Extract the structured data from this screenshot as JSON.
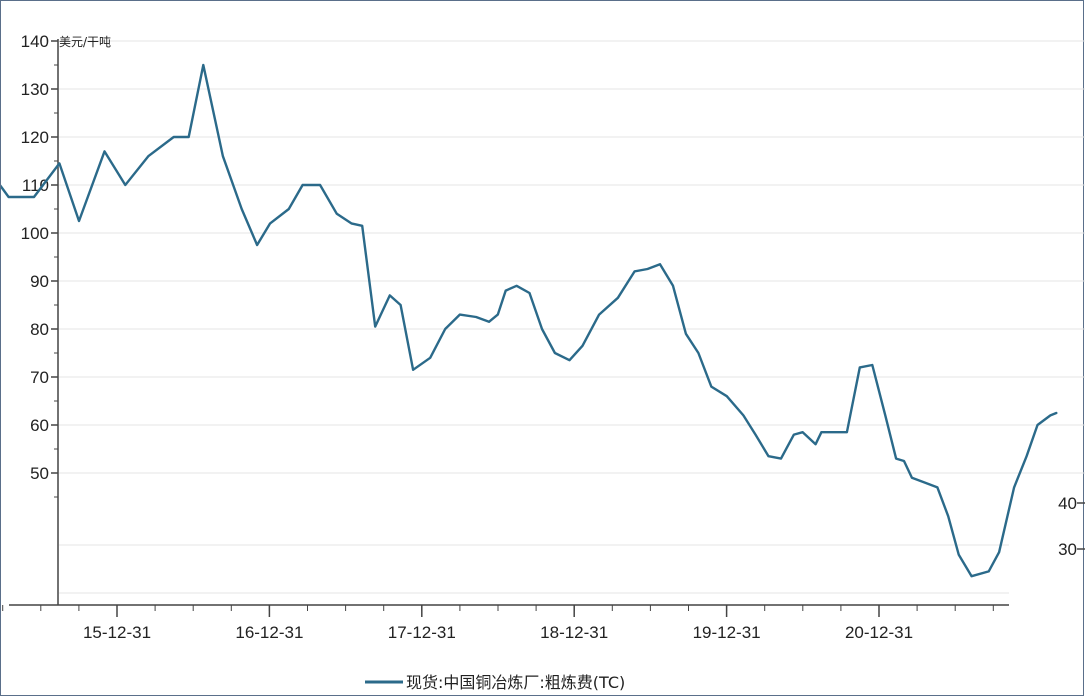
{
  "chart_data": {
    "type": "line",
    "unit_label": "美元/干吨",
    "ylim": [
      20,
      140
    ],
    "yticks": [
      50,
      60,
      70,
      80,
      90,
      100,
      110,
      120,
      130,
      140
    ],
    "right_ticks": [
      40,
      30
    ],
    "xlabels": [
      "15-12-31",
      "16-12-31",
      "17-12-31",
      "18-12-31",
      "19-12-31",
      "20-12-31"
    ],
    "grid": true,
    "legend_position": "bottom",
    "series": [
      {
        "name": "现货:中国铜冶炼厂:粗炼费(TC)",
        "color": "#2b6a8a",
        "x": [
          "2015-02-28",
          "2015-04-15",
          "2015-06-15",
          "2015-08-15",
          "2015-10-01",
          "2015-12-01",
          "2016-01-20",
          "2016-03-15",
          "2016-05-15",
          "2016-06-20",
          "2016-07-25",
          "2016-09-10",
          "2016-10-25",
          "2016-12-01",
          "2017-01-01",
          "2017-02-15",
          "2017-03-20",
          "2017-05-01",
          "2017-06-10",
          "2017-07-15",
          "2017-08-10",
          "2017-09-10",
          "2017-10-15",
          "2017-11-10",
          "2017-12-10",
          "2018-01-20",
          "2018-02-25",
          "2018-04-01",
          "2018-05-10",
          "2018-06-10",
          "2018-07-01",
          "2018-07-20",
          "2018-08-15",
          "2018-09-15",
          "2018-10-15",
          "2018-11-15",
          "2018-12-20",
          "2019-01-20",
          "2019-03-01",
          "2019-04-15",
          "2019-05-25",
          "2019-06-25",
          "2019-07-25",
          "2019-08-25",
          "2019-09-25",
          "2019-10-25",
          "2019-11-25",
          "2020-01-01",
          "2020-02-10",
          "2020-03-10",
          "2020-04-10",
          "2020-05-10",
          "2020-06-10",
          "2020-07-01",
          "2020-08-01",
          "2020-08-15",
          "2020-09-15",
          "2020-10-15",
          "2020-11-15",
          "2020-12-15",
          "2021-01-15",
          "2021-02-10",
          "2021-03-01",
          "2021-03-20",
          "2021-04-20",
          "2021-05-20",
          "2021-06-15",
          "2021-07-10",
          "2021-08-10",
          "2021-09-20",
          "2021-10-15",
          "2021-11-20",
          "2021-12-20",
          "2022-01-15",
          "2022-02-15",
          "2022-03-01"
        ],
        "y": [
          113,
          107.5,
          107.5,
          114.5,
          102.5,
          117,
          110,
          116,
          120,
          120,
          135,
          116,
          105,
          97.5,
          102,
          105,
          110,
          110,
          104,
          102,
          101.5,
          80.5,
          87,
          85,
          71.5,
          74,
          80,
          83,
          82.5,
          81.5,
          83,
          88,
          89,
          87.5,
          80,
          75,
          73.5,
          76.5,
          83,
          86.5,
          92,
          92.5,
          93.5,
          89,
          79,
          75,
          68,
          66,
          62,
          58,
          53.5,
          53,
          58,
          58.5,
          56,
          58.5,
          58.5,
          58.5,
          72,
          72.5,
          62,
          53,
          52.5,
          49,
          48,
          47,
          41,
          33,
          28.5,
          29.5,
          33.5,
          47,
          53.5,
          60,
          62,
          62.5
        ]
      }
    ]
  }
}
